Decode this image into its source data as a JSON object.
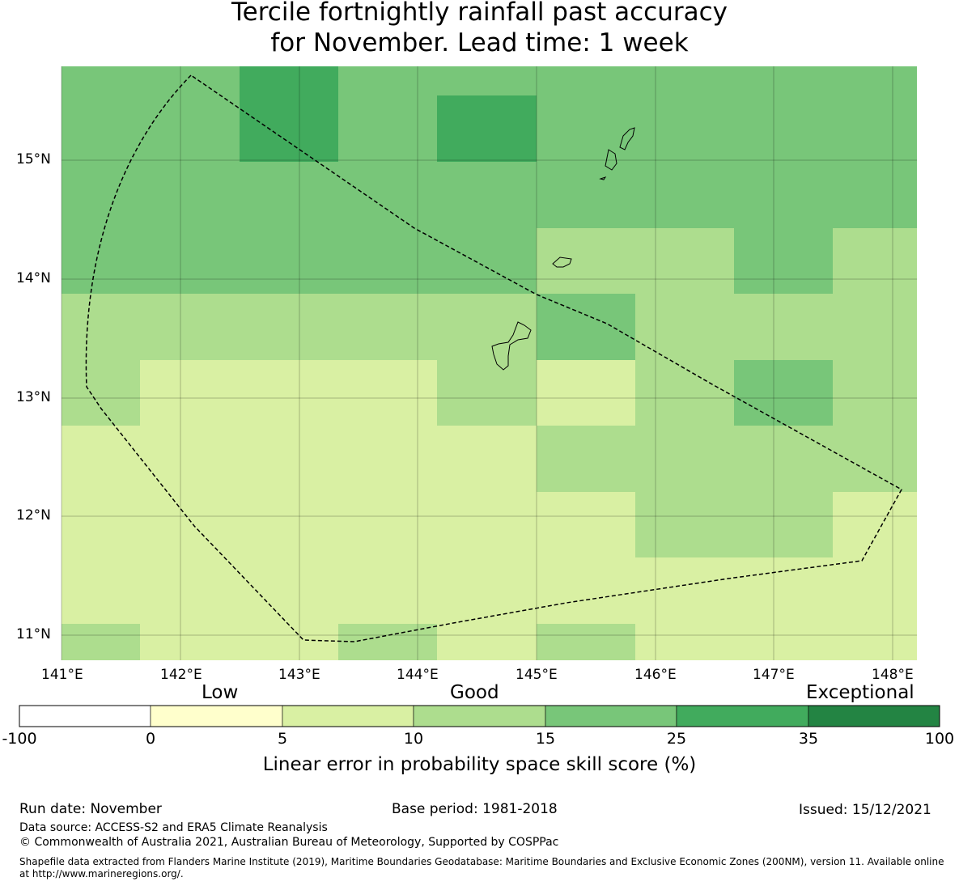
{
  "title_line1": "Tercile fortnightly rainfall past accuracy",
  "title_line2": "for November. Lead time: 1 week",
  "map": {
    "lat_labels": [
      "15°N",
      "14°N",
      "13°N",
      "12°N",
      "11°N"
    ],
    "lon_labels": [
      "141°E",
      "142°E",
      "143°E",
      "144°E",
      "145°E",
      "146°E",
      "147°E",
      "148°E"
    ]
  },
  "colorbar": {
    "category_low": "Low",
    "category_good": "Good",
    "category_exceptional": "Exceptional",
    "ticks": [
      "-100",
      "0",
      "5",
      "10",
      "15",
      "25",
      "35",
      "100"
    ],
    "colors": [
      "#ffffff",
      "#ffffcc",
      "#d9f0a3",
      "#addd8e",
      "#78c679",
      "#41ab5d",
      "#238443"
    ],
    "label": "Linear error in probability space skill score (%)"
  },
  "footer": {
    "run_date": "Run date: November",
    "base_period": "Base period: 1981-2018",
    "issued": "Issued: 15/12/2021",
    "data_source": "Data source: ACCESS-S2 and ERA5 Climate Reanalysis",
    "copyright": "© Commonwealth of Australia 2021, Australian Bureau of Meteorology, Supported by COSPPac",
    "shapefile": "Shapefile data extracted from Flanders Marine Institute (2019), Maritime Boundaries Geodatabase: Maritime Boundaries and Exclusive Economic Zones (200NM), version 11. Available online at http://www.marineregions.org/."
  }
}
